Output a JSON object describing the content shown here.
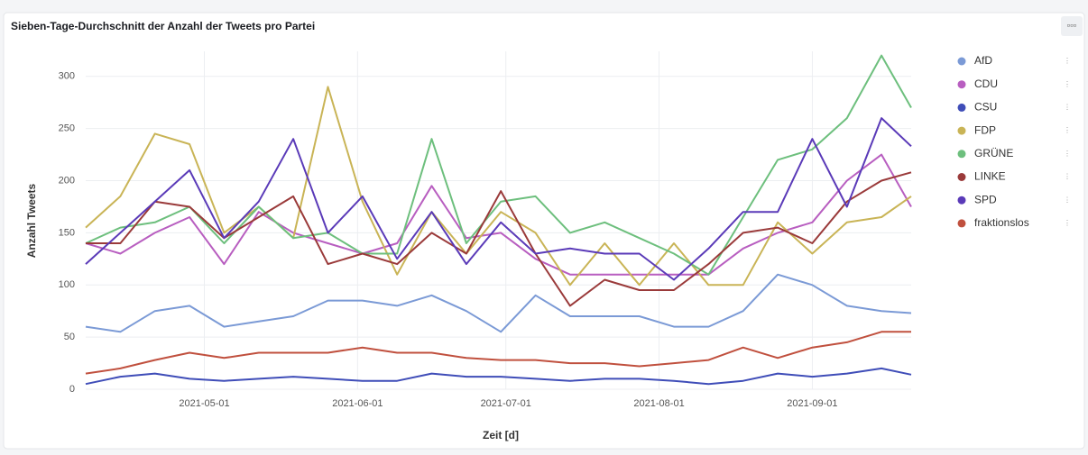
{
  "chart_data": {
    "type": "line",
    "title": "Sieben-Tage-Durchschnitt der Anzahl der Tweets pro Partei",
    "x_label": "Zeit [d]",
    "y_label": "Anzahl Tweets",
    "x": [
      "2021-04-07",
      "2021-04-14",
      "2021-04-21",
      "2021-04-28",
      "2021-05-05",
      "2021-05-12",
      "2021-05-19",
      "2021-05-26",
      "2021-06-02",
      "2021-06-09",
      "2021-06-16",
      "2021-06-23",
      "2021-06-30",
      "2021-07-07",
      "2021-07-14",
      "2021-07-21",
      "2021-07-28",
      "2021-08-04",
      "2021-08-11",
      "2021-08-18",
      "2021-08-25",
      "2021-09-01",
      "2021-09-08",
      "2021-09-15",
      "2021-09-21"
    ],
    "xlim": [
      "2021-04-07",
      "2021-09-21"
    ],
    "xticks": [
      "2021-05-01",
      "2021-06-01",
      "2021-07-01",
      "2021-08-01",
      "2021-09-01"
    ],
    "ylim": [
      0,
      324
    ],
    "yticks": [
      0,
      50,
      100,
      150,
      200,
      250,
      300
    ],
    "grid": true,
    "legend": "right",
    "series": [
      {
        "name": "AfD",
        "color": "#7b9ad6",
        "values": [
          60,
          55,
          75,
          80,
          60,
          65,
          70,
          85,
          85,
          80,
          90,
          75,
          55,
          90,
          70,
          70,
          70,
          60,
          60,
          75,
          110,
          100,
          80,
          75,
          73
        ]
      },
      {
        "name": "CDU",
        "color": "#b85ec0",
        "values": [
          140,
          130,
          150,
          165,
          120,
          170,
          150,
          140,
          130,
          140,
          195,
          145,
          150,
          125,
          110,
          110,
          110,
          110,
          110,
          135,
          150,
          160,
          200,
          225,
          175
        ]
      },
      {
        "name": "CSU",
        "color": "#3f4db8",
        "values": [
          5,
          12,
          15,
          10,
          8,
          10,
          12,
          10,
          8,
          8,
          15,
          12,
          12,
          10,
          8,
          10,
          10,
          8,
          5,
          8,
          15,
          12,
          15,
          20,
          14
        ]
      },
      {
        "name": "FDP",
        "color": "#c9b456",
        "values": [
          155,
          185,
          245,
          235,
          150,
          175,
          145,
          290,
          180,
          110,
          170,
          130,
          170,
          150,
          100,
          140,
          100,
          140,
          100,
          100,
          160,
          130,
          160,
          165,
          185
        ]
      },
      {
        "name": "GRÜNE",
        "color": "#6dbf7d",
        "values": [
          140,
          155,
          160,
          175,
          140,
          175,
          145,
          150,
          130,
          130,
          240,
          140,
          180,
          185,
          150,
          160,
          145,
          130,
          110,
          165,
          220,
          230,
          260,
          320,
          270
        ]
      },
      {
        "name": "LINKE",
        "color": "#9a3a3a",
        "values": [
          140,
          140,
          180,
          175,
          145,
          165,
          185,
          120,
          130,
          120,
          150,
          130,
          190,
          130,
          80,
          105,
          95,
          95,
          120,
          150,
          155,
          140,
          180,
          200,
          208
        ]
      },
      {
        "name": "SPD",
        "color": "#5a3ab8",
        "values": [
          120,
          150,
          180,
          210,
          145,
          180,
          240,
          150,
          185,
          125,
          170,
          120,
          160,
          130,
          135,
          130,
          130,
          105,
          135,
          170,
          170,
          240,
          175,
          260,
          233
        ]
      },
      {
        "name": "fraktionslos",
        "color": "#c0503e",
        "values": [
          15,
          20,
          28,
          35,
          30,
          35,
          35,
          35,
          40,
          35,
          35,
          30,
          28,
          28,
          25,
          25,
          22,
          25,
          28,
          40,
          30,
          40,
          45,
          55,
          55
        ]
      }
    ]
  }
}
